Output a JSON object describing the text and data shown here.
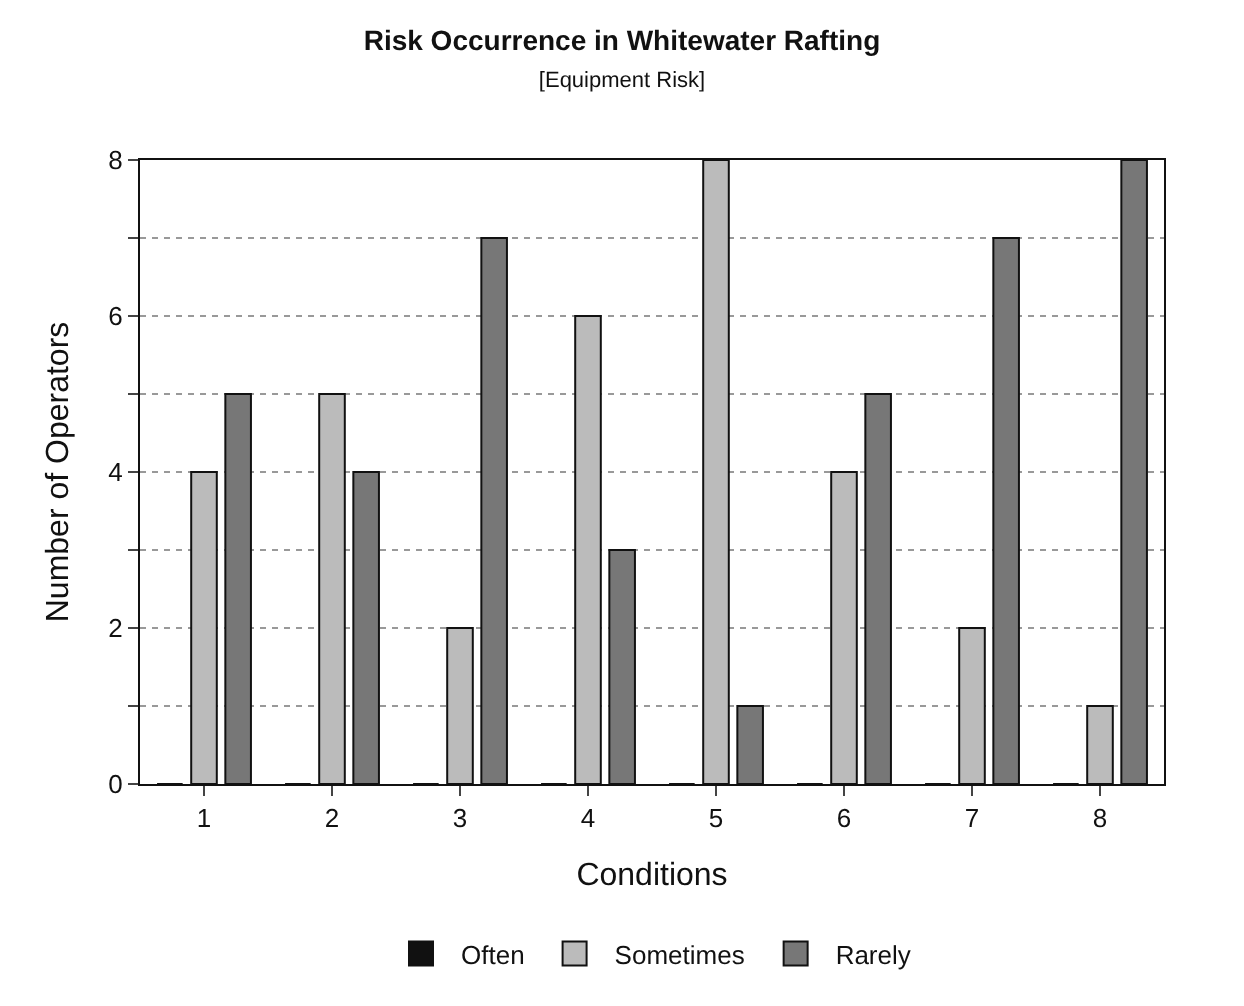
{
  "chart_data": {
    "type": "bar",
    "title": "Risk Occurrence in Whitewater Rafting",
    "subtitle": "[Equipment Risk]",
    "xlabel": "Conditions",
    "ylabel": "Number of Operators",
    "categories": [
      "1",
      "2",
      "3",
      "4",
      "5",
      "6",
      "7",
      "8"
    ],
    "series": [
      {
        "name": "Often",
        "color": "#111111",
        "values": [
          0,
          0,
          0,
          0,
          0,
          0,
          0,
          0
        ]
      },
      {
        "name": "Sometimes",
        "color": "#bbbbbb",
        "values": [
          4,
          5,
          2,
          6,
          8,
          4,
          2,
          1
        ]
      },
      {
        "name": "Rarely",
        "color": "#777777",
        "values": [
          5,
          4,
          7,
          3,
          1,
          5,
          7,
          8
        ]
      }
    ],
    "ylim": [
      0,
      8
    ],
    "yticks": [
      0,
      {
        "value": 1,
        "label": null
      },
      2,
      {
        "value": 3,
        "label": null
      },
      4,
      {
        "value": 5,
        "label": null
      },
      6,
      {
        "value": 7,
        "label": null
      },
      8
    ],
    "grid": "y",
    "legend": "bottom"
  }
}
